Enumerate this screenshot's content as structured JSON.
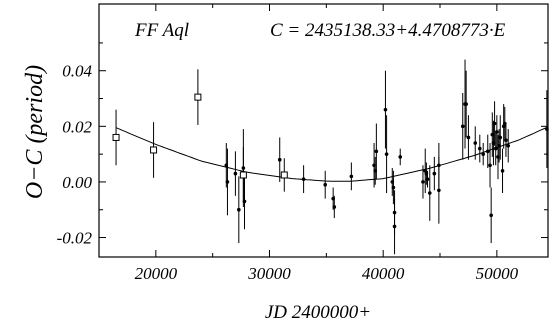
{
  "chart_data": {
    "type": "scatter",
    "title": "",
    "star_label": "FF Aql",
    "ephemeris_label": "C = 2435138.33+4.4708773·E",
    "xlabel": "JD 2400000+",
    "ylabel": "O−C (period)",
    "xlim": [
      15000,
      54500
    ],
    "ylim": [
      -0.027,
      0.064
    ],
    "xticks": [
      20000,
      30000,
      40000,
      50000
    ],
    "xtick_labels": [
      "20000",
      "30000",
      "40000",
      "50000"
    ],
    "yticks": [
      -0.02,
      0.0,
      0.02,
      0.04
    ],
    "ytick_labels": [
      "-0.02",
      "0.00",
      "0.02",
      "0.04"
    ],
    "grid": false,
    "fit_curve": {
      "description": "quadratic fit",
      "x": [
        16500,
        20000,
        24000,
        28000,
        32000,
        35000,
        37000,
        40000,
        44000,
        48000,
        52000,
        54500
      ],
      "y": [
        0.0195,
        0.0135,
        0.0075,
        0.0035,
        0.0012,
        0.0003,
        0.0002,
        0.0012,
        0.0048,
        0.0095,
        0.0152,
        0.0198
      ]
    },
    "series": [
      {
        "marker": "open-square",
        "points": [
          {
            "x": 16500,
            "y": 0.016,
            "err": 0.01
          },
          {
            "x": 19800,
            "y": 0.0115,
            "err": 0.01
          },
          {
            "x": 23700,
            "y": 0.0305,
            "err": 0.01
          },
          {
            "x": 27700,
            "y": 0.0025,
            "err": 0.01
          },
          {
            "x": 31300,
            "y": 0.0025,
            "err": 0.006
          }
        ]
      },
      {
        "marker": "dot",
        "points": [
          {
            "x": 26200,
            "y": 0.006,
            "err": 0.008
          },
          {
            "x": 26300,
            "y": 0.0,
            "err": 0.012
          },
          {
            "x": 27000,
            "y": 0.003,
            "err": 0.008
          },
          {
            "x": 27300,
            "y": -0.01,
            "err": 0.012
          },
          {
            "x": 27700,
            "y": 0.005,
            "err": 0.014
          },
          {
            "x": 27800,
            "y": -0.007,
            "err": 0.01
          },
          {
            "x": 30900,
            "y": 0.008,
            "err": 0.008
          },
          {
            "x": 33000,
            "y": 0.001,
            "err": 0.005
          },
          {
            "x": 34900,
            "y": -0.001,
            "err": 0.005
          },
          {
            "x": 35600,
            "y": -0.006,
            "err": 0.004
          },
          {
            "x": 35700,
            "y": -0.009,
            "err": 0.004
          },
          {
            "x": 37200,
            "y": 0.002,
            "err": 0.005
          },
          {
            "x": 39200,
            "y": 0.006,
            "err": 0.008
          },
          {
            "x": 39300,
            "y": 0.004,
            "err": 0.005
          },
          {
            "x": 39400,
            "y": 0.011,
            "err": 0.01
          },
          {
            "x": 40200,
            "y": 0.026,
            "err": 0.014
          },
          {
            "x": 40300,
            "y": 0.01,
            "err": 0.014
          },
          {
            "x": 40800,
            "y": 0.0,
            "err": 0.005
          },
          {
            "x": 40900,
            "y": -0.002,
            "err": 0.006
          },
          {
            "x": 41000,
            "y": -0.016,
            "err": 0.01
          },
          {
            "x": 41000,
            "y": -0.011,
            "err": 0.008
          },
          {
            "x": 41500,
            "y": 0.009,
            "err": 0.003
          },
          {
            "x": 43500,
            "y": 0.0,
            "err": 0.006
          },
          {
            "x": 43700,
            "y": 0.004,
            "err": 0.008
          },
          {
            "x": 43800,
            "y": 0.003,
            "err": 0.004
          },
          {
            "x": 43900,
            "y": 0.001,
            "err": 0.003
          },
          {
            "x": 44100,
            "y": -0.004,
            "err": 0.01
          },
          {
            "x": 44500,
            "y": 0.003,
            "err": 0.006
          },
          {
            "x": 44900,
            "y": 0.006,
            "err": 0.008
          },
          {
            "x": 44900,
            "y": -0.003,
            "err": 0.012
          },
          {
            "x": 47000,
            "y": 0.02,
            "err": 0.012
          },
          {
            "x": 47200,
            "y": 0.028,
            "err": 0.016
          },
          {
            "x": 47300,
            "y": 0.028,
            "err": 0.012
          },
          {
            "x": 47500,
            "y": 0.016,
            "err": 0.008
          },
          {
            "x": 48100,
            "y": 0.014,
            "err": 0.006
          },
          {
            "x": 48500,
            "y": 0.012,
            "err": 0.005
          },
          {
            "x": 48800,
            "y": 0.01,
            "err": 0.004
          },
          {
            "x": 49200,
            "y": 0.011,
            "err": 0.006
          },
          {
            "x": 49400,
            "y": 0.006,
            "err": 0.008
          },
          {
            "x": 49500,
            "y": -0.012,
            "err": 0.01
          },
          {
            "x": 49600,
            "y": 0.017,
            "err": 0.008
          },
          {
            "x": 49700,
            "y": 0.014,
            "err": 0.008
          },
          {
            "x": 49800,
            "y": 0.021,
            "err": 0.008
          },
          {
            "x": 49900,
            "y": 0.012,
            "err": 0.006
          },
          {
            "x": 50000,
            "y": 0.018,
            "err": 0.006
          },
          {
            "x": 50100,
            "y": 0.009,
            "err": 0.008
          },
          {
            "x": 50200,
            "y": 0.013,
            "err": 0.006
          },
          {
            "x": 50300,
            "y": 0.016,
            "err": 0.008
          },
          {
            "x": 50500,
            "y": 0.004,
            "err": 0.008
          },
          {
            "x": 50600,
            "y": 0.02,
            "err": 0.008
          },
          {
            "x": 50700,
            "y": 0.021,
            "err": 0.006
          },
          {
            "x": 50800,
            "y": 0.015,
            "err": 0.006
          },
          {
            "x": 51000,
            "y": 0.013,
            "err": 0.006
          },
          {
            "x": 54400,
            "y": 0.019,
            "err": 0.014
          }
        ]
      }
    ]
  }
}
